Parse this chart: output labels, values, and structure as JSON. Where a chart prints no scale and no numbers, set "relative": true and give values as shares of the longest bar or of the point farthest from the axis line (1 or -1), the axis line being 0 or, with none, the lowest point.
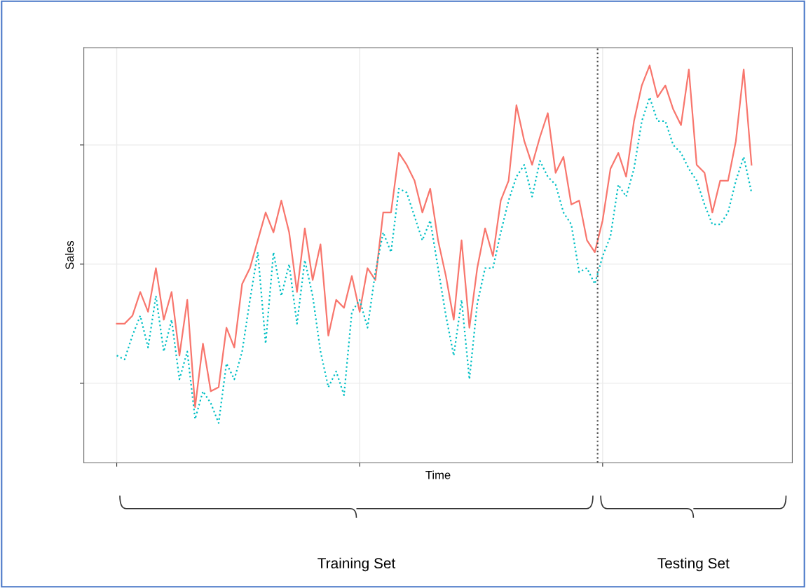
{
  "chart_data": {
    "type": "line",
    "relative": true,
    "xlabel": "Time",
    "ylabel": "Sales",
    "grid": true,
    "tick_labels": false,
    "legend": false,
    "categories": [
      null,
      null,
      null,
      null,
      null,
      null,
      null,
      null,
      null,
      null,
      null,
      null,
      null,
      null,
      null,
      null,
      null,
      null,
      null,
      null,
      null,
      null,
      null,
      null,
      null,
      null,
      null,
      null,
      null,
      null,
      null,
      null,
      null,
      null,
      null,
      null,
      null,
      null,
      null,
      null,
      null,
      null,
      null,
      null,
      null,
      null,
      null,
      null,
      null,
      null,
      null,
      null,
      null,
      null,
      null,
      null,
      null,
      null,
      null,
      null,
      null,
      null,
      null,
      null,
      null,
      null,
      null,
      null,
      null,
      null,
      null,
      null,
      null,
      null,
      null,
      null,
      null,
      null,
      null,
      null,
      null,
      null
    ],
    "series": [
      {
        "color": "#f8766d",
        "line_style": "solid",
        "values": [
          0.35,
          0.35,
          0.37,
          0.43,
          0.38,
          0.49,
          0.36,
          0.43,
          0.27,
          0.41,
          0.14,
          0.3,
          0.18,
          0.19,
          0.34,
          0.29,
          0.45,
          0.49,
          0.56,
          0.63,
          0.58,
          0.66,
          0.58,
          0.43,
          0.59,
          0.46,
          0.55,
          0.32,
          0.41,
          0.39,
          0.47,
          0.38,
          0.49,
          0.46,
          0.63,
          0.63,
          0.78,
          0.75,
          0.71,
          0.63,
          0.69,
          0.56,
          0.47,
          0.36,
          0.56,
          0.34,
          0.49,
          0.59,
          0.52,
          0.66,
          0.71,
          0.9,
          0.81,
          0.75,
          0.82,
          0.88,
          0.73,
          0.77,
          0.65,
          0.66,
          0.56,
          0.53,
          0.61,
          0.74,
          0.78,
          0.72,
          0.86,
          0.95,
          1.0,
          0.92,
          0.95,
          0.89,
          0.85,
          0.99,
          0.75,
          0.73,
          0.63,
          0.71,
          0.71,
          0.81,
          0.99,
          0.75
        ]
      },
      {
        "color": "#00bfc4",
        "line_style": "dotted",
        "values": [
          0.27,
          0.26,
          0.32,
          0.37,
          0.29,
          0.42,
          0.28,
          0.36,
          0.21,
          0.28,
          0.11,
          0.18,
          0.15,
          0.1,
          0.25,
          0.21,
          0.28,
          0.41,
          0.53,
          0.3,
          0.53,
          0.42,
          0.5,
          0.35,
          0.51,
          0.42,
          0.28,
          0.19,
          0.23,
          0.17,
          0.38,
          0.41,
          0.34,
          0.48,
          0.58,
          0.53,
          0.69,
          0.68,
          0.62,
          0.56,
          0.61,
          0.49,
          0.37,
          0.27,
          0.41,
          0.21,
          0.4,
          0.49,
          0.49,
          0.58,
          0.66,
          0.72,
          0.75,
          0.67,
          0.76,
          0.72,
          0.7,
          0.63,
          0.6,
          0.48,
          0.49,
          0.45,
          0.52,
          0.57,
          0.7,
          0.67,
          0.74,
          0.86,
          0.92,
          0.86,
          0.86,
          0.8,
          0.78,
          0.74,
          0.71,
          0.65,
          0.6,
          0.6,
          0.63,
          0.71,
          0.77,
          0.68
        ]
      }
    ],
    "annotations": [
      "Training Set",
      "Testing Set"
    ]
  }
}
